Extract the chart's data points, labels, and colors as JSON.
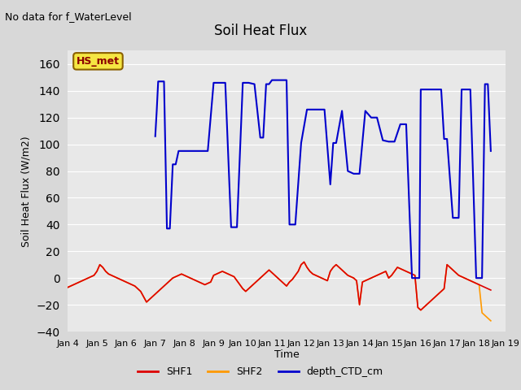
{
  "title": "Soil Heat Flux",
  "ylabel": "Soil Heat Flux (W/m2)",
  "xlabel": "Time",
  "top_note": "No data for f_WaterLevel",
  "annotation": "HS_met",
  "ylim": [
    -40,
    170
  ],
  "yticks": [
    -40,
    -20,
    0,
    20,
    40,
    60,
    80,
    100,
    120,
    140,
    160
  ],
  "bg_color": "#d8d8d8",
  "plot_bg_color": "#e8e8e8",
  "grid_color": "white",
  "shf1_color": "#dd0000",
  "shf2_color": "#ff9900",
  "depth_color": "#0000cc",
  "legend_labels": [
    "SHF1",
    "SHF2",
    "depth_CTD_cm"
  ],
  "x_tick_labels": [
    "Jan 4",
    "Jan 5",
    "Jan 6",
    "Jan 7",
    "Jan 8",
    "Jan 9",
    "Jan 10",
    "Jan 11",
    "Jan 12",
    "Jan 13",
    "Jan 14",
    "Jan 15",
    "Jan 16",
    "Jan 17",
    "Jan 18",
    "Jan 19"
  ],
  "shf1_x": [
    4,
    4.1,
    4.2,
    4.3,
    4.4,
    4.5,
    4.6,
    4.7,
    4.8,
    4.9,
    5.0,
    5.1,
    5.2,
    5.3,
    5.4,
    5.5,
    5.6,
    5.7,
    5.8,
    5.9,
    6.0,
    6.1,
    6.2,
    6.3,
    6.4,
    6.5,
    6.6,
    6.7,
    6.8,
    6.9,
    7.0,
    7.1,
    7.2,
    7.3,
    7.4,
    7.5,
    7.6,
    7.7,
    7.8,
    7.9,
    8.0,
    8.1,
    8.2,
    8.3,
    8.4,
    8.5,
    8.6,
    8.7,
    8.8,
    8.9,
    9.0,
    9.1,
    9.2,
    9.3,
    9.4,
    9.5,
    9.6,
    9.7,
    9.8,
    9.9,
    10.0,
    10.1,
    10.2,
    10.3,
    10.4,
    10.5,
    10.6,
    10.7,
    10.8,
    10.9,
    11.0,
    11.1,
    11.2,
    11.3,
    11.4,
    11.5,
    11.6,
    11.7,
    11.8,
    11.9,
    12.0,
    12.1,
    12.2,
    12.3,
    12.4,
    12.5,
    12.6,
    12.7,
    12.8,
    12.9,
    13.0,
    13.1,
    13.2,
    13.3,
    13.4,
    13.5,
    13.6,
    13.7,
    13.8,
    13.9,
    14.0,
    14.1,
    14.2,
    14.3,
    14.4,
    14.5,
    14.6,
    14.7,
    14.8,
    14.9,
    15.0,
    15.1,
    15.2,
    15.3,
    15.4,
    15.5,
    15.6,
    15.7,
    15.8,
    15.9,
    16.0,
    16.1,
    16.2,
    16.3,
    16.4,
    16.5,
    16.6,
    16.7,
    16.8,
    16.9,
    17.0,
    17.1,
    17.2,
    17.3,
    17.4,
    17.5,
    17.6,
    17.7,
    17.8,
    17.9,
    18.0,
    18.1,
    18.2,
    18.3,
    18.4,
    18.5
  ],
  "shf1_y": [
    -7,
    -6,
    -5,
    -4,
    -3,
    -2,
    -1,
    0,
    1,
    2,
    5,
    10,
    8,
    5,
    3,
    2,
    1,
    0,
    -1,
    -2,
    -3,
    -4,
    -5,
    -6,
    -8,
    -10,
    -14,
    -18,
    -16,
    -14,
    -12,
    -10,
    -8,
    -6,
    -4,
    -2,
    0,
    1,
    2,
    3,
    2,
    1,
    0,
    -1,
    -2,
    -3,
    -4,
    -5,
    -4,
    -3,
    2,
    3,
    4,
    5,
    4,
    3,
    2,
    1,
    -2,
    -5,
    -8,
    -10,
    -8,
    -6,
    -4,
    -2,
    0,
    2,
    4,
    6,
    4,
    2,
    0,
    -2,
    -4,
    -6,
    -3,
    -1,
    2,
    5,
    10,
    12,
    8,
    5,
    3,
    2,
    1,
    0,
    -1,
    -2,
    5,
    8,
    10,
    8,
    6,
    4,
    2,
    1,
    0,
    -2,
    -20,
    -3,
    -2,
    -1,
    0,
    1,
    2,
    3,
    4,
    5,
    0,
    2,
    5,
    8,
    7,
    6,
    5,
    4,
    3,
    2,
    -22,
    -24,
    -22,
    -20,
    -18,
    -16,
    -14,
    -12,
    -10,
    -8,
    10,
    8,
    6,
    4,
    2,
    1,
    0,
    -1,
    -2,
    -3,
    -4,
    -5,
    -6,
    -7,
    -8,
    -9
  ],
  "shf2_x": [
    4,
    4.1,
    4.2,
    4.3,
    4.4,
    4.5,
    4.6,
    4.7,
    4.8,
    4.9,
    5.0,
    5.1,
    5.2,
    5.3,
    5.4,
    5.5,
    5.6,
    5.7,
    5.8,
    5.9,
    6.0,
    6.1,
    6.2,
    6.3,
    6.4,
    6.5,
    6.6,
    6.7,
    6.8,
    6.9,
    7.0,
    7.1,
    7.2,
    7.3,
    7.4,
    7.5,
    7.6,
    7.7,
    7.8,
    7.9,
    8.0,
    8.1,
    8.2,
    8.3,
    8.4,
    8.5,
    8.6,
    8.7,
    8.8,
    8.9,
    9.0,
    9.1,
    9.2,
    9.3,
    9.4,
    9.5,
    9.6,
    9.7,
    9.8,
    9.9,
    10.0,
    10.1,
    10.2,
    10.3,
    10.4,
    10.5,
    10.6,
    10.7,
    10.8,
    10.9,
    11.0,
    11.1,
    11.2,
    11.3,
    11.4,
    11.5,
    11.6,
    11.7,
    11.8,
    11.9,
    12.0,
    12.1,
    12.2,
    12.3,
    12.4,
    12.5,
    12.6,
    12.7,
    12.8,
    12.9,
    13.0,
    13.1,
    13.2,
    13.3,
    13.4,
    13.5,
    13.6,
    13.7,
    13.8,
    13.9,
    14.0,
    14.1,
    14.2,
    14.3,
    14.4,
    14.5,
    14.6,
    14.7,
    14.8,
    14.9,
    15.0,
    15.1,
    15.2,
    15.3,
    15.4,
    15.5,
    15.6,
    15.7,
    15.8,
    15.9,
    16.0,
    16.1,
    16.2,
    16.3,
    16.4,
    16.5,
    16.6,
    16.7,
    16.8,
    16.9,
    17.0,
    17.1,
    17.2,
    17.3,
    17.4,
    17.5,
    17.6,
    17.7,
    17.8,
    17.9,
    18.0,
    18.1,
    18.2,
    18.3,
    18.4,
    18.5
  ],
  "shf2_y": [
    -7,
    -6,
    -5,
    -4,
    -3,
    -2,
    -1,
    0,
    1,
    2,
    5,
    10,
    8,
    5,
    3,
    2,
    1,
    0,
    -1,
    -2,
    -3,
    -4,
    -5,
    -6,
    -8,
    -10,
    -14,
    -18,
    -16,
    -14,
    -12,
    -10,
    -8,
    -6,
    -4,
    -2,
    0,
    1,
    2,
    3,
    2,
    1,
    0,
    -1,
    -2,
    -3,
    -4,
    -5,
    -4,
    -3,
    2,
    3,
    4,
    5,
    4,
    3,
    2,
    1,
    -2,
    -5,
    -8,
    -10,
    -8,
    -6,
    -4,
    -2,
    0,
    2,
    4,
    6,
    4,
    2,
    0,
    -2,
    -4,
    -6,
    -3,
    -1,
    2,
    5,
    10,
    12,
    8,
    5,
    3,
    2,
    1,
    0,
    -1,
    -2,
    5,
    8,
    10,
    8,
    6,
    4,
    2,
    1,
    0,
    -2,
    -20,
    -3,
    -2,
    -1,
    0,
    1,
    2,
    3,
    4,
    5,
    0,
    2,
    5,
    8,
    7,
    6,
    5,
    4,
    3,
    2,
    -22,
    -24,
    -22,
    -20,
    -18,
    -16,
    -14,
    -12,
    -10,
    -8,
    10,
    8,
    6,
    4,
    2,
    1,
    0,
    -1,
    -2,
    -3,
    -4,
    -5,
    -26,
    -28,
    -30,
    -32
  ],
  "depth_x": [
    7.0,
    7.05,
    7.1,
    7.2,
    7.3,
    7.4,
    7.5,
    7.6,
    7.7,
    7.8,
    7.9,
    8.0,
    8.2,
    8.4,
    8.6,
    8.8,
    9.0,
    9.2,
    9.4,
    9.6,
    9.8,
    10.0,
    10.2,
    10.4,
    10.6,
    10.7,
    10.8,
    10.9,
    11.0,
    11.2,
    11.4,
    11.5,
    11.6,
    11.8,
    12.0,
    12.2,
    12.4,
    12.5,
    12.6,
    12.8,
    13.0,
    13.1,
    13.2,
    13.4,
    13.6,
    13.8,
    13.9,
    14.0,
    14.2,
    14.4,
    14.5,
    14.6,
    14.8,
    15.0,
    15.1,
    15.2,
    15.4,
    15.6,
    15.8,
    15.9,
    16.0,
    16.05,
    16.1,
    16.2,
    16.4,
    16.6,
    16.8,
    16.9,
    17.0,
    17.2,
    17.4,
    17.5,
    17.6,
    17.8,
    18.0,
    18.2,
    18.3,
    18.4,
    18.5
  ],
  "depth_y": [
    106,
    125,
    147,
    147,
    147,
    37,
    37,
    85,
    85,
    95,
    95,
    95,
    95,
    95,
    95,
    95,
    146,
    146,
    146,
    38,
    38,
    146,
    146,
    145,
    105,
    105,
    145,
    145,
    148,
    148,
    148,
    148,
    40,
    40,
    101,
    126,
    126,
    126,
    126,
    126,
    70,
    101,
    101,
    125,
    80,
    78,
    78,
    78,
    125,
    120,
    120,
    120,
    103,
    102,
    102,
    102,
    115,
    115,
    0,
    0,
    0,
    0,
    141,
    141,
    141,
    141,
    141,
    104,
    104,
    45,
    45,
    141,
    141,
    141,
    0,
    0,
    145,
    145,
    95
  ]
}
